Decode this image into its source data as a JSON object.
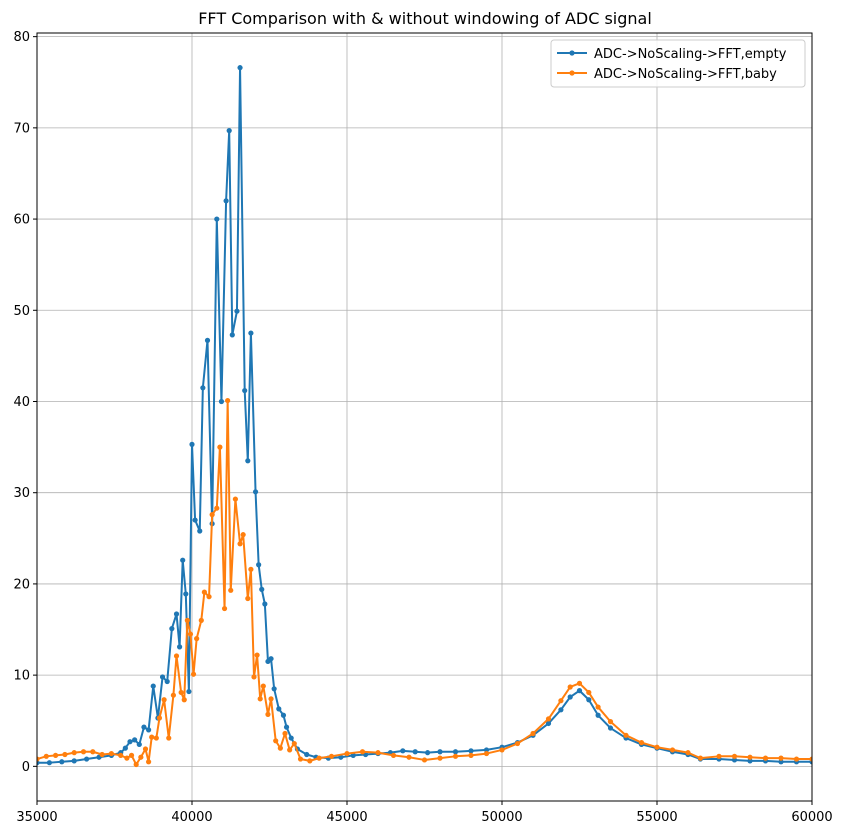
{
  "chart_data": {
    "type": "line",
    "title": "FFT Comparison with & without windowing of ADC signal",
    "xlabel": "",
    "ylabel": "",
    "xlim": [
      35000,
      60000
    ],
    "ylim": [
      -3.8,
      80.4
    ],
    "xticks": [
      35000,
      40000,
      45000,
      50000,
      55000,
      60000
    ],
    "yticks": [
      0,
      10,
      20,
      30,
      40,
      50,
      60,
      70,
      80
    ],
    "grid": true,
    "legend_position": "top-right",
    "series": [
      {
        "name": "ADC->NoScaling->FFT,empty",
        "color": "#1f77b4",
        "points": [
          [
            35000,
            0.4
          ],
          [
            35400,
            0.4
          ],
          [
            35800,
            0.5
          ],
          [
            36200,
            0.6
          ],
          [
            36600,
            0.8
          ],
          [
            37000,
            1.0
          ],
          [
            37400,
            1.2
          ],
          [
            37700,
            1.5
          ],
          [
            37850,
            2.0
          ],
          [
            38000,
            2.7
          ],
          [
            38150,
            2.9
          ],
          [
            38300,
            2.4
          ],
          [
            38450,
            4.3
          ],
          [
            38600,
            4.0
          ],
          [
            38750,
            8.8
          ],
          [
            38900,
            5.3
          ],
          [
            39050,
            9.8
          ],
          [
            39200,
            9.3
          ],
          [
            39350,
            15.1
          ],
          [
            39500,
            16.7
          ],
          [
            39600,
            13.1
          ],
          [
            39700,
            22.6
          ],
          [
            39800,
            18.9
          ],
          [
            39900,
            8.2
          ],
          [
            40000,
            35.3
          ],
          [
            40100,
            27.0
          ],
          [
            40250,
            25.8
          ],
          [
            40350,
            41.5
          ],
          [
            40500,
            46.7
          ],
          [
            40650,
            26.6
          ],
          [
            40800,
            60.0
          ],
          [
            40950,
            40.0
          ],
          [
            41100,
            62.0
          ],
          [
            41200,
            69.7
          ],
          [
            41300,
            47.3
          ],
          [
            41450,
            49.9
          ],
          [
            41550,
            76.6
          ],
          [
            41700,
            41.2
          ],
          [
            41800,
            33.5
          ],
          [
            41900,
            47.5
          ],
          [
            42050,
            30.1
          ],
          [
            42150,
            22.1
          ],
          [
            42250,
            19.4
          ],
          [
            42350,
            17.8
          ],
          [
            42450,
            11.5
          ],
          [
            42550,
            11.8
          ],
          [
            42650,
            8.5
          ],
          [
            42800,
            6.3
          ],
          [
            42950,
            5.6
          ],
          [
            43050,
            4.3
          ],
          [
            43200,
            3.1
          ],
          [
            43400,
            1.9
          ],
          [
            43700,
            1.3
          ],
          [
            44000,
            1.0
          ],
          [
            44400,
            0.9
          ],
          [
            44800,
            1.0
          ],
          [
            45200,
            1.2
          ],
          [
            45600,
            1.3
          ],
          [
            46000,
            1.4
          ],
          [
            46400,
            1.5
          ],
          [
            46800,
            1.7
          ],
          [
            47200,
            1.6
          ],
          [
            47600,
            1.5
          ],
          [
            48000,
            1.6
          ],
          [
            48500,
            1.6
          ],
          [
            49000,
            1.7
          ],
          [
            49500,
            1.8
          ],
          [
            50000,
            2.1
          ],
          [
            50500,
            2.6
          ],
          [
            51000,
            3.4
          ],
          [
            51500,
            4.7
          ],
          [
            51900,
            6.2
          ],
          [
            52200,
            7.6
          ],
          [
            52500,
            8.3
          ],
          [
            52800,
            7.3
          ],
          [
            53100,
            5.6
          ],
          [
            53500,
            4.2
          ],
          [
            54000,
            3.1
          ],
          [
            54500,
            2.4
          ],
          [
            55000,
            2.0
          ],
          [
            55500,
            1.6
          ],
          [
            56000,
            1.3
          ],
          [
            56400,
            0.8
          ],
          [
            57000,
            0.8
          ],
          [
            57500,
            0.7
          ],
          [
            58000,
            0.6
          ],
          [
            58500,
            0.6
          ],
          [
            59000,
            0.5
          ],
          [
            59500,
            0.5
          ],
          [
            60000,
            0.5
          ]
        ]
      },
      {
        "name": "ADC->NoScaling->FFT,baby",
        "color": "#ff7f0e",
        "points": [
          [
            35000,
            0.8
          ],
          [
            35300,
            1.1
          ],
          [
            35600,
            1.2
          ],
          [
            35900,
            1.3
          ],
          [
            36200,
            1.5
          ],
          [
            36500,
            1.6
          ],
          [
            36800,
            1.6
          ],
          [
            37100,
            1.3
          ],
          [
            37400,
            1.4
          ],
          [
            37700,
            1.2
          ],
          [
            37900,
            0.9
          ],
          [
            38050,
            1.2
          ],
          [
            38200,
            0.2
          ],
          [
            38350,
            1.0
          ],
          [
            38500,
            1.9
          ],
          [
            38600,
            0.5
          ],
          [
            38700,
            3.2
          ],
          [
            38850,
            3.1
          ],
          [
            38950,
            5.3
          ],
          [
            39100,
            7.3
          ],
          [
            39250,
            3.1
          ],
          [
            39400,
            7.8
          ],
          [
            39500,
            12.1
          ],
          [
            39650,
            8.1
          ],
          [
            39750,
            7.3
          ],
          [
            39850,
            16.0
          ],
          [
            39950,
            14.5
          ],
          [
            40050,
            10.1
          ],
          [
            40150,
            14.0
          ],
          [
            40300,
            16.0
          ],
          [
            40400,
            19.1
          ],
          [
            40550,
            18.6
          ],
          [
            40650,
            27.6
          ],
          [
            40800,
            28.3
          ],
          [
            40900,
            35.0
          ],
          [
            41050,
            17.3
          ],
          [
            41150,
            40.1
          ],
          [
            41250,
            19.3
          ],
          [
            41400,
            29.3
          ],
          [
            41550,
            24.4
          ],
          [
            41650,
            25.4
          ],
          [
            41800,
            18.4
          ],
          [
            41900,
            21.6
          ],
          [
            42000,
            9.8
          ],
          [
            42100,
            12.2
          ],
          [
            42200,
            7.4
          ],
          [
            42300,
            8.8
          ],
          [
            42450,
            5.7
          ],
          [
            42550,
            7.4
          ],
          [
            42700,
            2.8
          ],
          [
            42850,
            2.0
          ],
          [
            43000,
            3.6
          ],
          [
            43150,
            1.8
          ],
          [
            43300,
            2.5
          ],
          [
            43500,
            0.8
          ],
          [
            43800,
            0.6
          ],
          [
            44100,
            0.9
          ],
          [
            44500,
            1.1
          ],
          [
            45000,
            1.4
          ],
          [
            45500,
            1.6
          ],
          [
            46000,
            1.5
          ],
          [
            46500,
            1.2
          ],
          [
            47000,
            1.0
          ],
          [
            47500,
            0.7
          ],
          [
            48000,
            0.9
          ],
          [
            48500,
            1.1
          ],
          [
            49000,
            1.2
          ],
          [
            49500,
            1.4
          ],
          [
            50000,
            1.8
          ],
          [
            50500,
            2.5
          ],
          [
            51000,
            3.6
          ],
          [
            51500,
            5.2
          ],
          [
            51900,
            7.2
          ],
          [
            52200,
            8.7
          ],
          [
            52500,
            9.1
          ],
          [
            52800,
            8.1
          ],
          [
            53100,
            6.5
          ],
          [
            53500,
            4.9
          ],
          [
            54000,
            3.4
          ],
          [
            54500,
            2.6
          ],
          [
            55000,
            2.1
          ],
          [
            55500,
            1.8
          ],
          [
            56000,
            1.5
          ],
          [
            56400,
            0.9
          ],
          [
            57000,
            1.1
          ],
          [
            57500,
            1.1
          ],
          [
            58000,
            1.0
          ],
          [
            58500,
            0.9
          ],
          [
            59000,
            0.9
          ],
          [
            59500,
            0.8
          ],
          [
            60000,
            0.8
          ]
        ]
      }
    ]
  }
}
